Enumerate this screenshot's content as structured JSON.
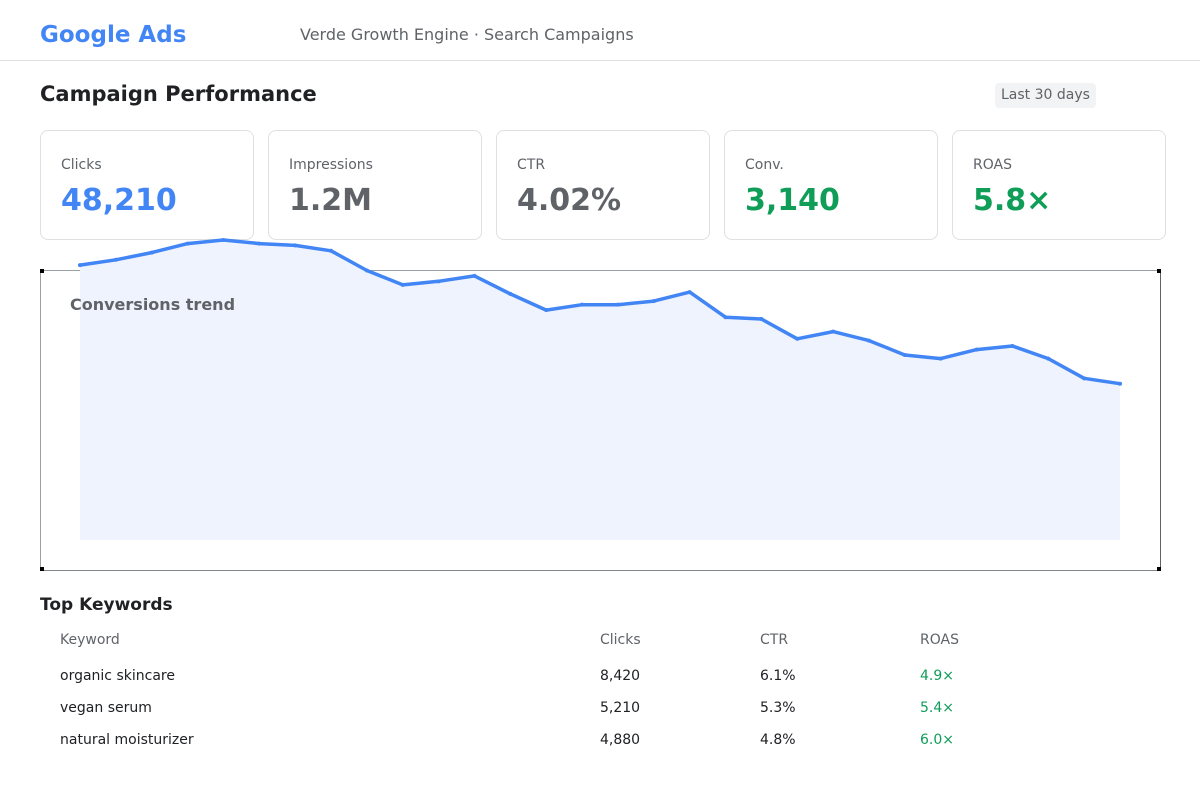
{
  "header": {
    "brand": "Google Ads",
    "account": "Verde Growth Engine · Search Campaigns"
  },
  "page": {
    "title": "Campaign Performance",
    "date_range": "Last 30 days"
  },
  "colors": {
    "brand": "#4285f4",
    "neutral": "#5f6368",
    "positive": "#0f9d58",
    "area_fill": "#eef3fd"
  },
  "kpis": [
    {
      "label": "Clicks",
      "value": "48,210",
      "color": "#4285f4"
    },
    {
      "label": "Impressions",
      "value": "1.2M",
      "color": "#5f6368"
    },
    {
      "label": "CTR",
      "value": "4.02%",
      "color": "#5f6368"
    },
    {
      "label": "Conv.",
      "value": "3,140",
      "color": "#0f9d58"
    },
    {
      "label": "ROAS",
      "value": "5.8×",
      "color": "#0f9d58"
    }
  ],
  "chart_data": {
    "type": "area",
    "title": "Conversions trend",
    "xlabel": "",
    "ylabel": "",
    "grid": false,
    "series": [
      {
        "values": [
          87,
          90,
          94,
          99,
          101,
          99,
          98,
          95,
          84,
          76,
          78,
          81,
          71,
          62,
          65,
          65,
          67,
          72,
          58,
          57,
          46,
          50,
          45,
          37,
          35,
          40,
          42,
          35,
          24,
          21
        ]
      }
    ],
    "ylim": [
      -66,
      101
    ]
  },
  "keywords": {
    "title": "Top Keywords",
    "columns": [
      "Keyword",
      "Clicks",
      "CTR",
      "ROAS"
    ],
    "rows": [
      {
        "keyword": "organic skincare",
        "clicks": "8,420",
        "ctr": "6.1%",
        "roas": "4.9×"
      },
      {
        "keyword": "vegan serum",
        "clicks": "5,210",
        "ctr": "5.3%",
        "roas": "5.4×"
      },
      {
        "keyword": "natural moisturizer",
        "clicks": "4,880",
        "ctr": "4.8%",
        "roas": "6.0×"
      }
    ]
  }
}
